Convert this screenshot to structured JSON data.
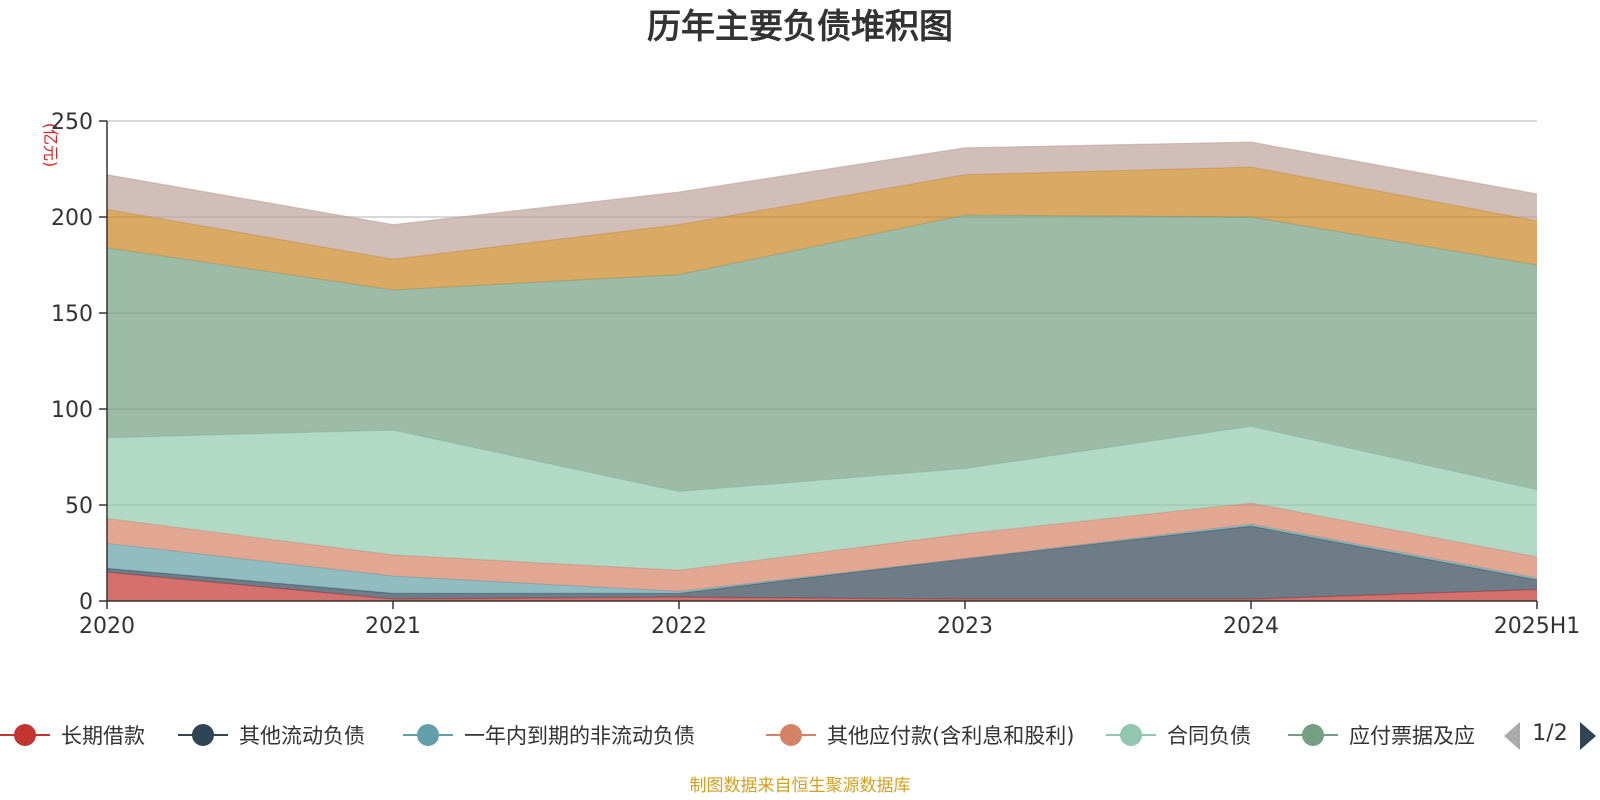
{
  "chart_data": {
    "type": "area",
    "stacked": true,
    "title": "历年主要负债堆积图",
    "unit_label": "(亿元)",
    "x": [
      "2020",
      "2021",
      "2022",
      "2023",
      "2024",
      "2025H1"
    ],
    "ylim": [
      0,
      250
    ],
    "yticks": [
      0,
      50,
      100,
      150,
      200,
      250
    ],
    "grid": true,
    "series": [
      {
        "name": "长期借款",
        "color": "#c23531",
        "values": [
          15,
          1,
          2,
          1,
          1,
          6
        ]
      },
      {
        "name": "其他流动负债",
        "color": "#2f4554",
        "values": [
          2,
          3,
          2,
          21,
          38,
          5
        ]
      },
      {
        "name": "一年内到期的非流动负债",
        "color": "#61a0a8",
        "values": [
          13,
          9,
          1,
          0,
          1,
          1
        ]
      },
      {
        "name": "其他应付款(含利息和股利)",
        "color": "#d48265",
        "values": [
          13,
          11,
          11,
          13,
          11,
          11
        ]
      },
      {
        "name": "合同负债",
        "color": "#91c7ae",
        "values": [
          42,
          65,
          41,
          34,
          40,
          35
        ]
      },
      {
        "name": "应付票据及应付账款",
        "color": "#749f83",
        "values": [
          99,
          73,
          113,
          132,
          109,
          117
        ]
      },
      {
        "name": "",
        "color": "#ca8622",
        "values": [
          20,
          16,
          26,
          21,
          26,
          23
        ]
      },
      {
        "name": "",
        "color": "#bda29a",
        "values": [
          18,
          18,
          17,
          14,
          13,
          14
        ]
      }
    ],
    "legend": {
      "position": "bottom",
      "visible_labels": [
        "长期借款",
        "其他流动负债",
        "一年内到期的非流动负债",
        "其他应付款(含利息和股利)",
        "合同负债",
        "应付票据及应"
      ],
      "page": "1/2"
    },
    "source": "制图数据来自恒生聚源数据库"
  }
}
